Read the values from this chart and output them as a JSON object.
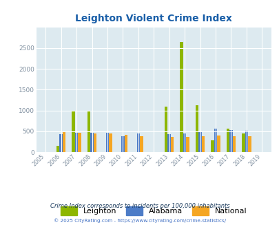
{
  "title": "Leighton Violent Crime Index",
  "years": [
    2005,
    2006,
    2007,
    2008,
    2009,
    2010,
    2011,
    2012,
    2013,
    2014,
    2015,
    2016,
    2017,
    2018,
    2019
  ],
  "leighton": [
    0,
    150,
    975,
    970,
    0,
    0,
    0,
    0,
    1100,
    2650,
    1120,
    290,
    560,
    450,
    0
  ],
  "alabama": [
    0,
    430,
    460,
    460,
    460,
    390,
    450,
    0,
    430,
    440,
    490,
    560,
    530,
    520,
    0
  ],
  "national": [
    0,
    480,
    470,
    450,
    450,
    410,
    390,
    0,
    370,
    365,
    390,
    400,
    380,
    380,
    0
  ],
  "leighton_color": "#8db600",
  "alabama_color": "#4d7cc7",
  "national_color": "#f5a623",
  "bg_color": "#ddeaf0",
  "ylim": [
    0,
    3000
  ],
  "yticks": [
    0,
    500,
    1000,
    1500,
    2000,
    2500
  ],
  "footnote1": "Crime Index corresponds to incidents per 100,000 inhabitants",
  "footnote2": "© 2025 CityRating.com - https://www.cityrating.com/crime-statistics/",
  "title_color": "#1a5fa8",
  "footnote1_color": "#1a3a5c",
  "footnote2_color": "#4472c4"
}
